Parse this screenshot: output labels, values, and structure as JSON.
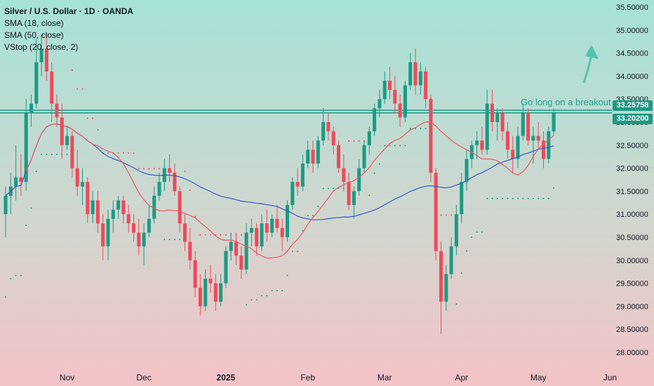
{
  "legend": {
    "title": "Silver / U.S. Dollar · 1D · OANDA",
    "sma18": "SMA (18, close)",
    "sma50": "SMA (50, close)",
    "vstop": "VStop (20, close, 2)"
  },
  "annotation": "Go long on a breakout",
  "price_tags": {
    "upper": "33.25758",
    "lower": "33.20200"
  },
  "colors": {
    "up": "#1c9a84",
    "down": "#ee4a5a",
    "sma18": "#ef5664",
    "sma50": "#3756c8",
    "line": "#1c9a84",
    "arrow": "#55c4ac"
  },
  "chart_data": {
    "type": "candlestick",
    "title": "Silver / U.S. Dollar · 1D · OANDA",
    "ylim": [
      27.8,
      35.7
    ],
    "y_ticks": [
      "35.50000",
      "35.00000",
      "34.50000",
      "34.00000",
      "33.50000",
      "33.00000",
      "32.50000",
      "32.00000",
      "31.50000",
      "31.00000",
      "30.50000",
      "30.00000",
      "29.50000",
      "29.00000",
      "28.50000",
      "28.00000"
    ],
    "x_ticks": [
      "Nov",
      "Dec",
      "2025",
      "Feb",
      "Mar",
      "Apr",
      "May",
      "Jun"
    ],
    "horizontal_lines": [
      33.25758,
      33.202
    ],
    "candles": [
      [
        31.0,
        31.6,
        30.5,
        31.4
      ],
      [
        31.4,
        31.9,
        31.0,
        31.6
      ],
      [
        31.6,
        32.5,
        31.3,
        31.8
      ],
      [
        31.8,
        32.3,
        31.4,
        31.7
      ],
      [
        31.7,
        33.5,
        31.5,
        33.2
      ],
      [
        33.2,
        33.6,
        32.9,
        33.4
      ],
      [
        33.4,
        34.8,
        33.3,
        34.3
      ],
      [
        34.3,
        34.9,
        34.0,
        34.6
      ],
      [
        34.6,
        34.9,
        33.9,
        34.1
      ],
      [
        34.1,
        34.3,
        33.0,
        33.4
      ],
      [
        33.4,
        33.6,
        32.9,
        33.1
      ],
      [
        33.1,
        33.4,
        32.2,
        32.5
      ],
      [
        32.5,
        32.9,
        32.4,
        32.7
      ],
      [
        32.7,
        32.8,
        31.8,
        32.0
      ],
      [
        32.0,
        32.4,
        31.4,
        31.6
      ],
      [
        31.6,
        32.0,
        31.2,
        31.7
      ],
      [
        31.7,
        31.8,
        30.8,
        31.0
      ],
      [
        31.0,
        31.5,
        30.8,
        31.3
      ],
      [
        31.3,
        31.5,
        30.6,
        30.8
      ],
      [
        30.8,
        31.0,
        30.0,
        30.3
      ],
      [
        30.3,
        31.1,
        30.0,
        30.9
      ],
      [
        30.9,
        31.3,
        30.6,
        31.1
      ],
      [
        31.1,
        31.4,
        30.9,
        31.3
      ],
      [
        31.3,
        31.4,
        30.8,
        31.0
      ],
      [
        31.0,
        31.2,
        30.6,
        30.8
      ],
      [
        30.8,
        31.0,
        30.4,
        30.6
      ],
      [
        30.6,
        30.9,
        30.1,
        30.3
      ],
      [
        30.3,
        30.8,
        29.9,
        30.6
      ],
      [
        30.6,
        31.2,
        30.5,
        30.9
      ],
      [
        30.9,
        31.6,
        30.8,
        31.4
      ],
      [
        31.4,
        31.9,
        31.3,
        31.7
      ],
      [
        31.7,
        32.2,
        31.5,
        32.0
      ],
      [
        32.0,
        32.3,
        31.7,
        31.9
      ],
      [
        31.9,
        32.1,
        31.4,
        31.5
      ],
      [
        31.5,
        31.6,
        30.6,
        30.8
      ],
      [
        30.8,
        31.0,
        30.2,
        30.4
      ],
      [
        30.4,
        30.7,
        29.8,
        30.0
      ],
      [
        30.0,
        30.2,
        29.2,
        29.4
      ],
      [
        29.4,
        29.7,
        28.8,
        29.0
      ],
      [
        29.0,
        29.8,
        28.9,
        29.6
      ],
      [
        29.6,
        29.9,
        29.3,
        29.5
      ],
      [
        29.5,
        29.7,
        28.9,
        29.1
      ],
      [
        29.1,
        29.7,
        29.0,
        29.5
      ],
      [
        29.5,
        30.3,
        29.4,
        30.2
      ],
      [
        30.2,
        30.6,
        30.0,
        30.4
      ],
      [
        30.4,
        30.6,
        29.9,
        30.1
      ],
      [
        30.1,
        30.3,
        29.6,
        29.8
      ],
      [
        29.8,
        30.8,
        29.7,
        30.6
      ],
      [
        30.6,
        30.9,
        30.3,
        30.7
      ],
      [
        30.7,
        30.8,
        30.1,
        30.3
      ],
      [
        30.3,
        31.0,
        30.2,
        30.8
      ],
      [
        30.8,
        31.1,
        30.4,
        30.6
      ],
      [
        30.6,
        31.0,
        30.5,
        30.9
      ],
      [
        30.9,
        31.2,
        30.6,
        30.7
      ],
      [
        30.7,
        30.9,
        30.2,
        30.5
      ],
      [
        30.5,
        31.3,
        30.4,
        31.2
      ],
      [
        31.2,
        31.8,
        31.1,
        31.7
      ],
      [
        31.7,
        32.0,
        31.4,
        31.6
      ],
      [
        31.6,
        32.3,
        31.5,
        32.1
      ],
      [
        32.1,
        32.6,
        32.0,
        32.4
      ],
      [
        32.4,
        32.6,
        31.9,
        32.1
      ],
      [
        32.1,
        32.7,
        32.0,
        32.6
      ],
      [
        32.6,
        33.3,
        32.5,
        33.0
      ],
      [
        33.0,
        33.2,
        32.6,
        32.8
      ],
      [
        32.8,
        32.9,
        32.3,
        32.5
      ],
      [
        32.5,
        32.6,
        31.9,
        32.0
      ],
      [
        32.0,
        32.3,
        31.5,
        31.7
      ],
      [
        31.7,
        31.9,
        31.1,
        31.2
      ],
      [
        31.2,
        31.6,
        30.9,
        31.5
      ],
      [
        31.5,
        32.2,
        31.4,
        32.0
      ],
      [
        32.0,
        32.6,
        31.9,
        32.5
      ],
      [
        32.5,
        32.9,
        32.3,
        32.8
      ],
      [
        32.8,
        33.4,
        32.7,
        33.3
      ],
      [
        33.3,
        33.7,
        33.1,
        33.5
      ],
      [
        33.5,
        34.1,
        33.4,
        33.9
      ],
      [
        33.9,
        34.2,
        33.5,
        33.7
      ],
      [
        33.7,
        34.0,
        33.2,
        33.4
      ],
      [
        33.4,
        33.6,
        32.9,
        33.1
      ],
      [
        33.1,
        33.9,
        33.0,
        33.8
      ],
      [
        33.8,
        34.5,
        33.7,
        34.3
      ],
      [
        34.3,
        34.6,
        33.6,
        33.8
      ],
      [
        33.8,
        34.3,
        33.6,
        34.1
      ],
      [
        34.1,
        34.2,
        33.3,
        33.5
      ],
      [
        33.5,
        33.6,
        31.7,
        31.9
      ],
      [
        31.9,
        32.0,
        30.0,
        30.2
      ],
      [
        30.2,
        30.4,
        28.4,
        29.1
      ],
      [
        29.1,
        29.9,
        28.9,
        29.7
      ],
      [
        29.7,
        30.5,
        29.6,
        30.3
      ],
      [
        30.3,
        31.2,
        30.1,
        31.0
      ],
      [
        31.0,
        31.9,
        30.8,
        31.7
      ],
      [
        31.7,
        32.4,
        31.5,
        32.2
      ],
      [
        32.2,
        32.6,
        32.0,
        32.5
      ],
      [
        32.5,
        32.8,
        32.2,
        32.6
      ],
      [
        32.6,
        32.9,
        32.3,
        32.4
      ],
      [
        32.4,
        33.7,
        32.3,
        33.4
      ],
      [
        33.4,
        33.7,
        32.8,
        33.0
      ],
      [
        33.0,
        33.3,
        32.6,
        33.2
      ],
      [
        33.2,
        33.3,
        32.6,
        32.8
      ],
      [
        32.8,
        33.0,
        32.2,
        32.4
      ],
      [
        32.4,
        32.7,
        31.9,
        32.2
      ],
      [
        32.2,
        32.9,
        32.0,
        32.7
      ],
      [
        32.7,
        33.4,
        32.6,
        33.2
      ],
      [
        33.2,
        33.3,
        32.5,
        32.6
      ],
      [
        32.6,
        32.9,
        32.1,
        32.7
      ],
      [
        32.7,
        33.0,
        32.4,
        32.6
      ],
      [
        32.6,
        32.8,
        32.0,
        32.2
      ],
      [
        32.2,
        32.9,
        32.1,
        32.8
      ],
      [
        32.8,
        33.3,
        32.7,
        33.2
      ]
    ]
  }
}
